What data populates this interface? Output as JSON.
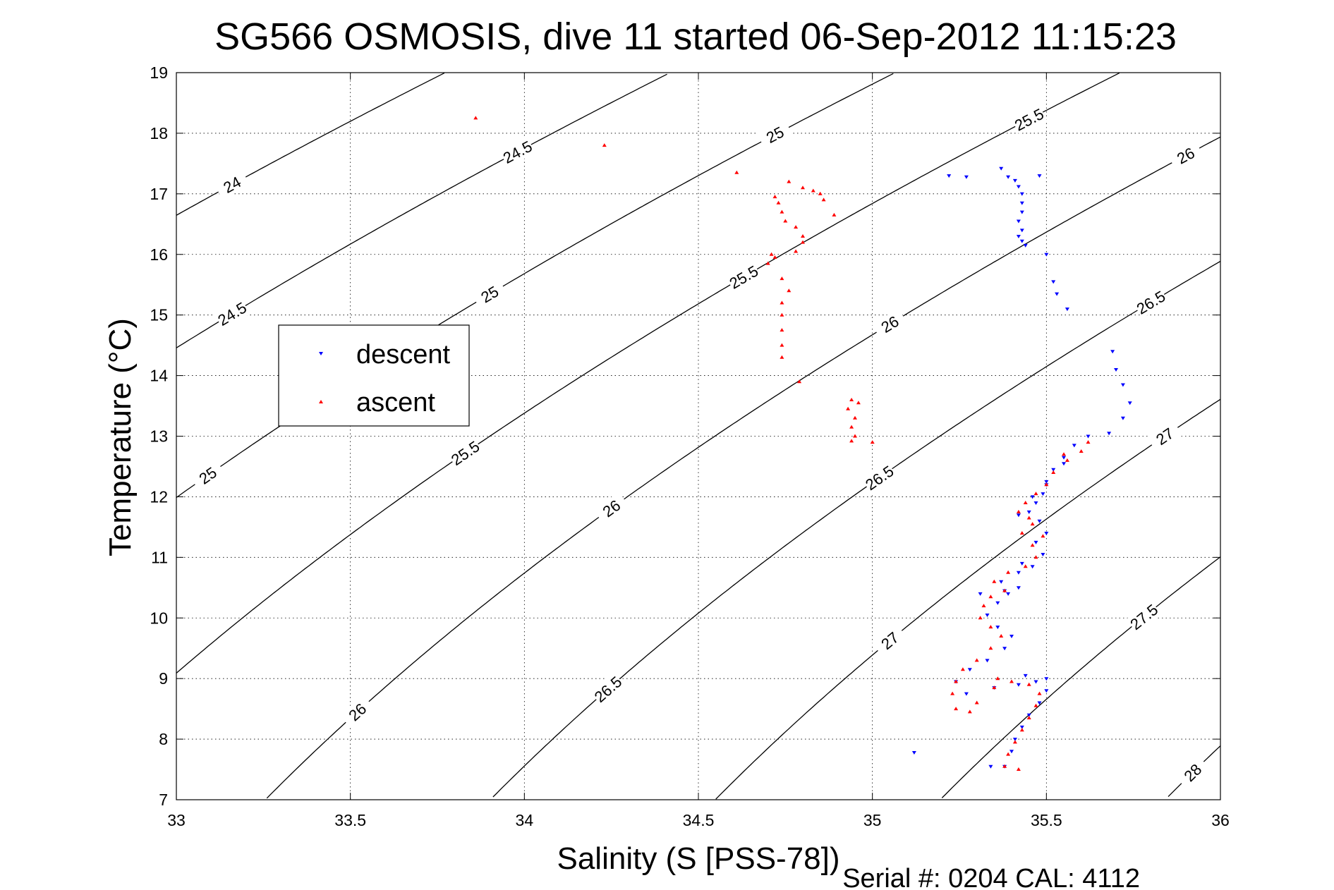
{
  "chart_data": {
    "type": "scatter",
    "title": "SG566 OSMOSIS, dive 11 started 06-Sep-2012 11:15:23",
    "xlabel": "Salinity (S [PSS-78])",
    "ylabel": "Temperature (°C)",
    "footer": "Serial #: 0204  CAL: 4112",
    "xlim": [
      33,
      36
    ],
    "ylim": [
      7,
      19
    ],
    "xticks": [
      "33",
      "33.5",
      "34",
      "34.5",
      "35",
      "35.5",
      "36"
    ],
    "yticks": [
      "7",
      "8",
      "9",
      "10",
      "11",
      "12",
      "13",
      "14",
      "15",
      "16",
      "17",
      "18",
      "19"
    ],
    "grid": true,
    "legend_position": "left-middle",
    "density_contours": {
      "levels": [
        24,
        24.5,
        25,
        25.5,
        26,
        26.5,
        27,
        27.5,
        28
      ],
      "labels": [
        {
          "text": "24",
          "s": 33.16,
          "t": 17.4
        },
        {
          "text": "24.5",
          "s": 33.98,
          "t": 18.0
        },
        {
          "text": "25",
          "s": 34.72,
          "t": 18.2
        },
        {
          "text": "25.5",
          "s": 35.45,
          "t": 18.4
        },
        {
          "text": "24.5",
          "s": 33.16,
          "t": 15.15
        },
        {
          "text": "25",
          "s": 33.9,
          "t": 15.5
        },
        {
          "text": "25.5",
          "s": 34.63,
          "t": 15.75
        },
        {
          "text": "26",
          "s": 35.9,
          "t": 17.3
        },
        {
          "text": "25",
          "s": 33.09,
          "t": 12.35
        },
        {
          "text": "25.5",
          "s": 33.83,
          "t": 12.95
        },
        {
          "text": "26",
          "s": 35.05,
          "t": 15.0
        },
        {
          "text": "26.5",
          "s": 35.8,
          "t": 15.3
        },
        {
          "text": "26",
          "s": 34.25,
          "t": 12.0
        },
        {
          "text": "26.5",
          "s": 35.02,
          "t": 12.5
        },
        {
          "text": "27",
          "s": 35.84,
          "t": 13.0
        },
        {
          "text": "26",
          "s": 33.52,
          "t": 8.7
        },
        {
          "text": "26.5",
          "s": 34.24,
          "t": 9.15
        },
        {
          "text": "27",
          "s": 35.05,
          "t": 10.0
        },
        {
          "text": "27.5",
          "s": 35.78,
          "t": 10.25
        },
        {
          "text": "28",
          "s": 35.92,
          "t": 7.95
        }
      ]
    },
    "series": [
      {
        "name": "descent",
        "color": "#0000ff",
        "marker": "triangle-down",
        "points": [
          [
            35.22,
            17.3
          ],
          [
            35.27,
            17.28
          ],
          [
            35.37,
            17.42
          ],
          [
            35.39,
            17.28
          ],
          [
            35.41,
            17.22
          ],
          [
            35.42,
            17.12
          ],
          [
            35.43,
            17.0
          ],
          [
            35.43,
            16.85
          ],
          [
            35.43,
            16.7
          ],
          [
            35.42,
            16.55
          ],
          [
            35.43,
            16.4
          ],
          [
            35.42,
            16.3
          ],
          [
            35.43,
            16.22
          ],
          [
            35.44,
            16.15
          ],
          [
            35.48,
            17.3
          ],
          [
            35.5,
            16.0
          ],
          [
            35.52,
            15.55
          ],
          [
            35.53,
            15.35
          ],
          [
            35.56,
            15.1
          ],
          [
            35.69,
            14.4
          ],
          [
            35.7,
            14.1
          ],
          [
            35.72,
            13.85
          ],
          [
            35.74,
            13.55
          ],
          [
            35.72,
            13.3
          ],
          [
            35.68,
            13.05
          ],
          [
            35.62,
            13.0
          ],
          [
            35.58,
            12.85
          ],
          [
            35.55,
            12.65
          ],
          [
            35.52,
            12.45
          ],
          [
            35.5,
            12.25
          ],
          [
            35.49,
            12.05
          ],
          [
            35.47,
            11.9
          ],
          [
            35.45,
            11.75
          ],
          [
            35.48,
            11.6
          ],
          [
            35.5,
            11.4
          ],
          [
            35.47,
            11.25
          ],
          [
            35.49,
            11.05
          ],
          [
            35.46,
            10.85
          ],
          [
            35.42,
            10.75
          ],
          [
            35.37,
            10.6
          ],
          [
            35.42,
            10.5
          ],
          [
            35.39,
            10.4
          ],
          [
            35.36,
            10.25
          ],
          [
            35.33,
            10.05
          ],
          [
            35.36,
            9.85
          ],
          [
            35.4,
            9.7
          ],
          [
            35.38,
            9.5
          ],
          [
            35.33,
            9.3
          ],
          [
            35.28,
            9.15
          ],
          [
            35.24,
            8.95
          ],
          [
            35.27,
            8.75
          ],
          [
            35.35,
            8.85
          ],
          [
            35.42,
            8.9
          ],
          [
            35.47,
            8.95
          ],
          [
            35.5,
            8.8
          ],
          [
            35.48,
            8.6
          ],
          [
            35.45,
            8.4
          ],
          [
            35.43,
            8.2
          ],
          [
            35.41,
            8.0
          ],
          [
            35.4,
            7.8
          ],
          [
            35.38,
            7.55
          ],
          [
            35.34,
            7.55
          ],
          [
            35.12,
            7.78
          ],
          [
            35.31,
            10.4
          ],
          [
            35.44,
            9.05
          ],
          [
            35.5,
            9.0
          ],
          [
            35.42,
            11.7
          ],
          [
            35.46,
            12.0
          ],
          [
            35.5,
            12.2
          ],
          [
            35.55,
            12.55
          ],
          [
            35.43,
            10.9
          ],
          [
            35.38,
            10.45
          ]
        ]
      },
      {
        "name": "ascent",
        "color": "#ff0000",
        "marker": "triangle-up",
        "points": [
          [
            33.86,
            18.25
          ],
          [
            34.23,
            17.8
          ],
          [
            34.61,
            17.35
          ],
          [
            34.76,
            17.2
          ],
          [
            34.8,
            17.1
          ],
          [
            34.83,
            17.05
          ],
          [
            34.85,
            17.0
          ],
          [
            34.72,
            16.95
          ],
          [
            34.73,
            16.85
          ],
          [
            34.74,
            16.7
          ],
          [
            34.75,
            16.55
          ],
          [
            34.78,
            16.45
          ],
          [
            34.8,
            16.3
          ],
          [
            34.8,
            16.2
          ],
          [
            34.78,
            16.05
          ],
          [
            34.72,
            15.95
          ],
          [
            34.7,
            15.85
          ],
          [
            34.74,
            15.6
          ],
          [
            34.76,
            15.4
          ],
          [
            34.74,
            15.2
          ],
          [
            34.74,
            15.0
          ],
          [
            34.74,
            14.75
          ],
          [
            34.74,
            14.5
          ],
          [
            34.74,
            14.3
          ],
          [
            34.79,
            13.9
          ],
          [
            34.93,
            13.45
          ],
          [
            34.94,
            13.6
          ],
          [
            34.96,
            13.55
          ],
          [
            34.95,
            13.3
          ],
          [
            34.94,
            13.15
          ],
          [
            34.95,
            13.0
          ],
          [
            34.94,
            12.92
          ],
          [
            35.0,
            12.9
          ],
          [
            34.89,
            16.65
          ],
          [
            34.86,
            16.9
          ],
          [
            34.71,
            16.0
          ],
          [
            35.62,
            12.9
          ],
          [
            35.6,
            12.75
          ],
          [
            35.56,
            12.6
          ],
          [
            35.52,
            12.4
          ],
          [
            35.5,
            12.2
          ],
          [
            35.47,
            12.05
          ],
          [
            35.44,
            11.9
          ],
          [
            35.42,
            11.75
          ],
          [
            35.46,
            11.55
          ],
          [
            35.49,
            11.35
          ],
          [
            35.46,
            11.2
          ],
          [
            35.47,
            11.0
          ],
          [
            35.44,
            10.85
          ],
          [
            35.39,
            10.75
          ],
          [
            35.35,
            10.6
          ],
          [
            35.38,
            10.45
          ],
          [
            35.34,
            10.35
          ],
          [
            35.32,
            10.2
          ],
          [
            35.31,
            10.0
          ],
          [
            35.34,
            9.85
          ],
          [
            35.37,
            9.7
          ],
          [
            35.34,
            9.5
          ],
          [
            35.3,
            9.3
          ],
          [
            35.26,
            9.15
          ],
          [
            35.24,
            8.95
          ],
          [
            35.23,
            8.75
          ],
          [
            35.24,
            8.5
          ],
          [
            35.3,
            8.6
          ],
          [
            35.35,
            8.85
          ],
          [
            35.4,
            8.95
          ],
          [
            35.45,
            8.9
          ],
          [
            35.48,
            8.75
          ],
          [
            35.47,
            8.55
          ],
          [
            35.45,
            8.35
          ],
          [
            35.43,
            8.15
          ],
          [
            35.41,
            7.95
          ],
          [
            35.39,
            7.75
          ],
          [
            35.38,
            7.55
          ],
          [
            35.42,
            7.5
          ],
          [
            35.55,
            12.7
          ],
          [
            35.43,
            11.4
          ],
          [
            35.45,
            11.65
          ],
          [
            35.36,
            9.0
          ],
          [
            35.28,
            8.45
          ]
        ]
      }
    ]
  }
}
